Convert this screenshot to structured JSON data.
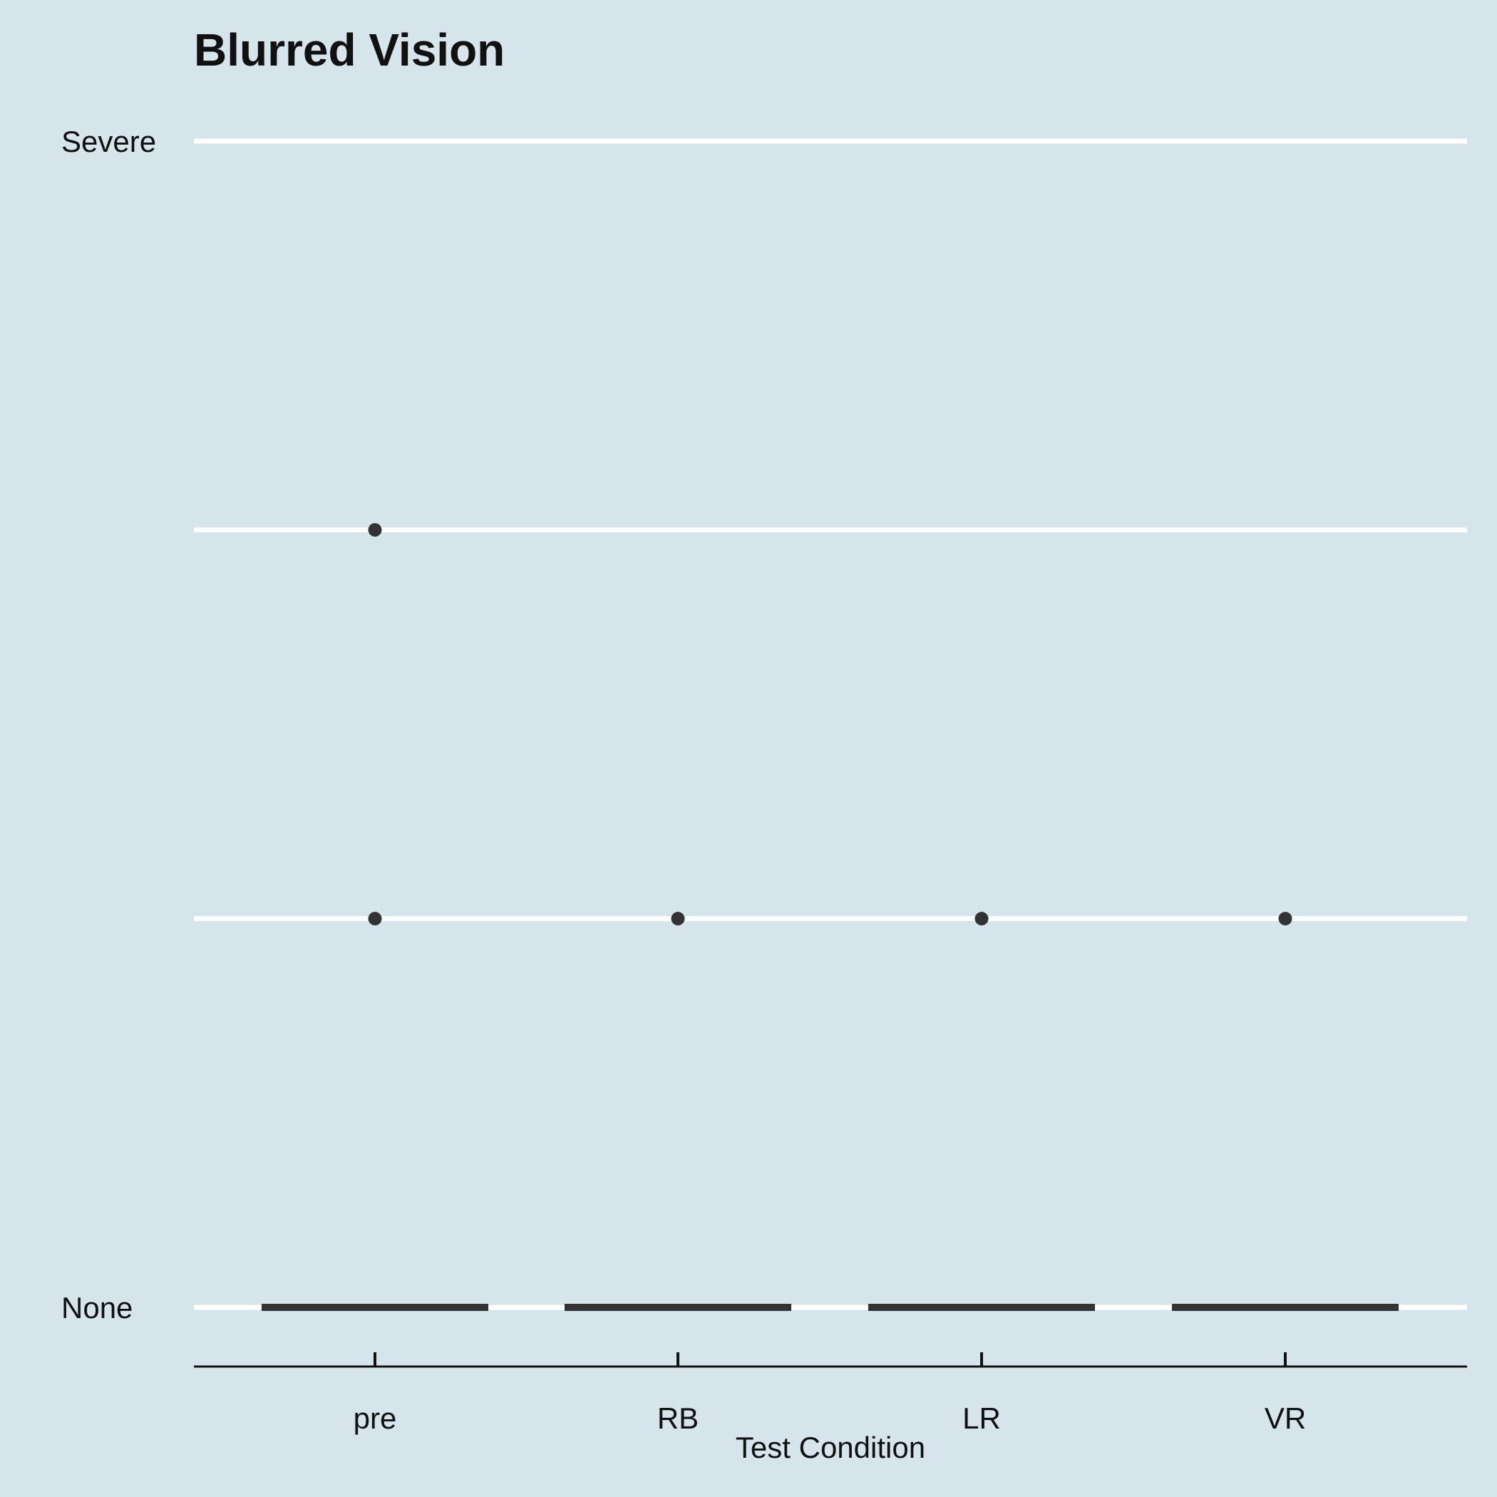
{
  "chart_data": {
    "type": "boxplot",
    "title": "Blurred Vision",
    "xlabel": "Test Condition",
    "ylabel": "",
    "categories": [
      "pre",
      "RB",
      "LR",
      "VR"
    ],
    "y_levels": [
      "None",
      "",
      "",
      "Severe"
    ],
    "y_tick_labels": [
      "None",
      "Severe"
    ],
    "ylim": [
      0,
      3
    ],
    "grid": true,
    "colors": {
      "background": "#d6e5ec",
      "gridline": "#ffffff",
      "box": "#333333",
      "axis": "#111111"
    },
    "medians": [
      0,
      0,
      0,
      0
    ],
    "outliers": [
      {
        "category": "pre",
        "value": 2
      },
      {
        "category": "pre",
        "value": 1
      },
      {
        "category": "RB",
        "value": 1
      },
      {
        "category": "LR",
        "value": 1
      },
      {
        "category": "VR",
        "value": 1
      }
    ]
  }
}
